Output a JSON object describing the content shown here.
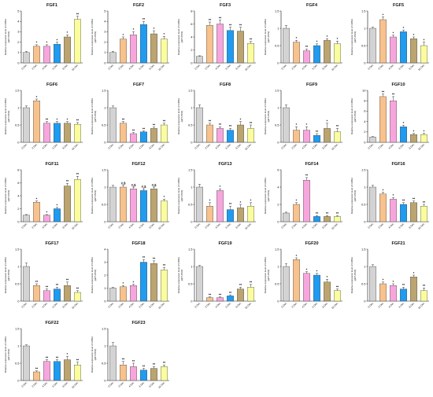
{
  "colors": [
    "#d3d3d3",
    "#f7c28d",
    "#f6a6dd",
    "#1f9bf0",
    "#bba46f",
    "#fafc9e"
  ],
  "chart_data": [
    {
      "type": "bar",
      "title": "FGF1",
      "ylabel": "Relative expression level of mRNA",
      "ylabel2": "(qRT-PCR)",
      "categories": [
        "0 Dec",
        "2 Dec",
        "4 Dec",
        "6 Dec",
        "8 Dec",
        "16 Dec"
      ],
      "values": [
        1.0,
        1.6,
        1.6,
        1.8,
        2.5,
        4.2
      ],
      "errors": [
        0.1,
        0.15,
        0.15,
        0.2,
        0.2,
        0.3
      ],
      "sig": [
        "",
        "*",
        "*",
        "*",
        "*",
        "**"
      ],
      "ylim": [
        0,
        5
      ],
      "yticks": [
        0,
        1,
        2,
        3,
        4,
        5
      ]
    },
    {
      "type": "bar",
      "title": "FGF2",
      "ylabel": "Relative expression level of mRNA",
      "ylabel2": "(qRT-PCR)",
      "categories": [
        "0 Dec",
        "2 Dec",
        "4 Dec",
        "6 Dec",
        "8 Dec",
        "16 Dec"
      ],
      "values": [
        1.0,
        2.3,
        2.7,
        3.7,
        2.8,
        2.3
      ],
      "errors": [
        0.1,
        0.2,
        0.3,
        0.3,
        0.3,
        0.25
      ],
      "sig": [
        "",
        "*",
        "*",
        "**",
        "*",
        "*"
      ],
      "ylim": [
        0,
        5
      ],
      "yticks": [
        0,
        1,
        2,
        3,
        4,
        5
      ]
    },
    {
      "type": "bar",
      "title": "FGF3",
      "ylabel": "Relative expression level of mRNA",
      "ylabel2": "(qRT-PCR)",
      "categories": [
        "0 Dec",
        "2 Dec",
        "4 Dec",
        "6 Dec",
        "8 Dec",
        "16 Dec"
      ],
      "values": [
        1.0,
        5.8,
        6.0,
        5.0,
        4.9,
        3.0
      ],
      "errors": [
        0.1,
        0.5,
        0.6,
        0.5,
        0.6,
        0.3
      ],
      "sig": [
        "",
        "**",
        "**",
        "**",
        "**",
        "**"
      ],
      "ylim": [
        0,
        8
      ],
      "yticks": [
        0,
        2,
        4,
        6,
        8
      ]
    },
    {
      "type": "bar",
      "title": "FGF4",
      "ylabel": "Relative expression level of mRNA",
      "ylabel2": "(qRT-PCR)",
      "categories": [
        "0 Dec",
        "2 Dec",
        "4 Dec",
        "6 Dec",
        "8 Dec",
        "16 Dec"
      ],
      "values": [
        1.0,
        0.6,
        0.35,
        0.5,
        0.65,
        0.55
      ],
      "errors": [
        0.08,
        0.05,
        0.05,
        0.05,
        0.05,
        0.08
      ],
      "sig": [
        "",
        "*",
        "**",
        "*",
        "*",
        "*"
      ],
      "ylim": [
        0,
        1.5
      ],
      "yticks": [
        0,
        0.5,
        1.0,
        1.5
      ]
    },
    {
      "type": "bar",
      "title": "FGF5",
      "ylabel": "Relative expression level of mRNA",
      "ylabel2": "(qRT-PCR)",
      "categories": [
        "0 Dec",
        "2 Dec",
        "4 Dec",
        "6 Dec",
        "8 Dec",
        "16 Dec"
      ],
      "values": [
        1.0,
        1.25,
        0.75,
        0.9,
        0.7,
        0.5
      ],
      "errors": [
        0.03,
        0.08,
        0.05,
        0.05,
        0.05,
        0.1
      ],
      "sig": [
        "",
        "*",
        "*",
        "*",
        "*",
        "*"
      ],
      "ylim": [
        0,
        1.5
      ],
      "yticks": [
        0,
        0.5,
        1.0,
        1.5
      ]
    },
    {
      "type": "bar",
      "title": "FGF6",
      "ylabel": "Relative expression level of mRNA",
      "ylabel2": "(qRT-PCR)",
      "categories": [
        "0 Dec",
        "2 Dec",
        "4 Dec",
        "6 Dec",
        "8 Dec",
        "16 Dec"
      ],
      "values": [
        1.0,
        1.2,
        0.55,
        0.55,
        0.55,
        0.52
      ],
      "errors": [
        0.05,
        0.05,
        0.05,
        0.05,
        0.05,
        0.05
      ],
      "sig": [
        "",
        "*",
        "**",
        "*",
        "*",
        "**"
      ],
      "ylim": [
        0,
        1.5
      ],
      "yticks": [
        0,
        0.5,
        1.0,
        1.5
      ]
    },
    {
      "type": "bar",
      "title": "FGF7",
      "ylabel": "Relative expression level of mRNA",
      "ylabel2": "(qRT-PCR)",
      "categories": [
        "0 Dec",
        "2 Dec",
        "4 Dec",
        "6 Dec",
        "8 Dec",
        "16 Dec"
      ],
      "values": [
        1.0,
        0.55,
        0.25,
        0.3,
        0.4,
        0.5
      ],
      "errors": [
        0.05,
        0.05,
        0.03,
        0.03,
        0.04,
        0.05
      ],
      "sig": [
        "",
        "**",
        "**",
        "**",
        "**",
        "**"
      ],
      "ylim": [
        0,
        1.5
      ],
      "yticks": [
        0,
        0.5,
        1.0,
        1.5
      ]
    },
    {
      "type": "bar",
      "title": "FGF8",
      "ylabel": "Relative expression level of mRNA",
      "ylabel2": "(qRT-PCR)",
      "categories": [
        "0 Dec",
        "2 Dec",
        "4 Dec",
        "6 Dec",
        "8 Dec",
        "16 Dec"
      ],
      "values": [
        1.0,
        0.5,
        0.4,
        0.35,
        0.5,
        0.4
      ],
      "errors": [
        0.08,
        0.05,
        0.05,
        0.05,
        0.1,
        0.1
      ],
      "sig": [
        "",
        "**",
        "**",
        "**",
        "*",
        "**"
      ],
      "ylim": [
        0,
        1.5
      ],
      "yticks": [
        0,
        0.5,
        1.0,
        1.5
      ]
    },
    {
      "type": "bar",
      "title": "FGF9",
      "ylabel": "Relative expression level of mRNA",
      "ylabel2": "(qRT-PCR)",
      "categories": [
        "0 Dec",
        "2 Dec",
        "4 Dec",
        "6 Dec",
        "8 Dec",
        "16 Dec"
      ],
      "values": [
        1.0,
        0.35,
        0.35,
        0.2,
        0.4,
        0.3
      ],
      "errors": [
        0.08,
        0.1,
        0.1,
        0.05,
        0.15,
        0.1
      ],
      "sig": [
        "",
        "*",
        "*",
        "**",
        "*",
        "**"
      ],
      "ylim": [
        0,
        1.5
      ],
      "yticks": [
        0,
        0.5,
        1.0,
        1.5
      ]
    },
    {
      "type": "bar",
      "title": "FGF10",
      "ylabel": "Relative expression level of mRNA",
      "ylabel2": "(qRT-PCR)",
      "categories": [
        "0 Dec",
        "2 Dec",
        "4 Dec",
        "6 Dec",
        "8 Dec",
        "16 Dec"
      ],
      "values": [
        1.0,
        8.8,
        8.0,
        3.0,
        1.5,
        1.5
      ],
      "errors": [
        0.1,
        0.5,
        0.8,
        0.3,
        0.2,
        0.2
      ],
      "sig": [
        "",
        "**",
        "**",
        "*",
        "*",
        "*"
      ],
      "ylim": [
        0,
        10
      ],
      "yticks": [
        0,
        2,
        4,
        6,
        8,
        10
      ]
    },
    {
      "type": "bar",
      "title": "FGF11",
      "ylabel": "Relative expression level of mRNA",
      "ylabel2": "(qRT-PCR)",
      "categories": [
        "0 Dec",
        "2 Dec",
        "4 Dec",
        "6 Dec",
        "8 Dec",
        "16 Dec"
      ],
      "values": [
        1.0,
        3.0,
        1.0,
        2.0,
        5.5,
        6.5
      ],
      "errors": [
        0.1,
        0.2,
        0.1,
        0.2,
        0.4,
        0.5
      ],
      "sig": [
        "",
        "*",
        "*",
        "*",
        "**",
        "**"
      ],
      "ylim": [
        0,
        8
      ],
      "yticks": [
        0,
        2,
        4,
        6,
        8
      ]
    },
    {
      "type": "bar",
      "title": "FGF12",
      "ylabel": "Relative expression level of mRNA",
      "ylabel2": "(qRT-PCR)",
      "categories": [
        "0 Dec",
        "2 Dec",
        "4 Dec",
        "6 Dec",
        "8 Dec",
        "16 Dec"
      ],
      "values": [
        1.0,
        1.0,
        0.95,
        0.9,
        0.95,
        0.6
      ],
      "errors": [
        0.05,
        0.05,
        0.05,
        0.05,
        0.05,
        0.05
      ],
      "sig": [
        "",
        "#,$",
        "#,$",
        "#,$",
        "#,$",
        "*"
      ],
      "ylim": [
        0,
        1.5
      ],
      "yticks": [
        0,
        0.5,
        1.0,
        1.5
      ]
    },
    {
      "type": "bar",
      "title": "FGF13",
      "ylabel": "Relative expression level of mRNA",
      "ylabel2": "(qRT-PCR)",
      "categories": [
        "0 Dec",
        "2 Dec",
        "4 Dec",
        "6 Dec",
        "8 Dec",
        "16 Dec"
      ],
      "values": [
        1.0,
        0.45,
        0.9,
        0.35,
        0.4,
        0.45
      ],
      "errors": [
        0.08,
        0.1,
        0.05,
        0.1,
        0.1,
        0.1
      ],
      "sig": [
        "",
        "*",
        "*",
        "**",
        "*",
        "*"
      ],
      "ylim": [
        0,
        1.5
      ],
      "yticks": [
        0,
        0.5,
        1.0,
        1.5
      ]
    },
    {
      "type": "bar",
      "title": "FGF14",
      "ylabel": "Relative expression level of mRNA",
      "ylabel2": "(qRT-PCR)",
      "categories": [
        "0 Dec",
        "2 Dec",
        "4 Dec",
        "6 Dec",
        "8 Dec",
        "16 Dec"
      ],
      "values": [
        1.0,
        2.0,
        4.8,
        0.6,
        0.6,
        0.6
      ],
      "errors": [
        0.1,
        0.2,
        0.3,
        0.1,
        0.1,
        0.1
      ],
      "sig": [
        "",
        "*",
        "**",
        "**",
        "**",
        "**"
      ],
      "ylim": [
        0,
        6
      ],
      "yticks": [
        0,
        2,
        4,
        6
      ]
    },
    {
      "type": "bar",
      "title": "FGF16",
      "ylabel": "Relative expression level of mRNA",
      "ylabel2": "(qRT-PCR)",
      "categories": [
        "0 Dec",
        "2 Dec",
        "4 Dec",
        "6 Dec",
        "8 Dec",
        "16 Dec"
      ],
      "values": [
        1.0,
        0.8,
        0.65,
        0.5,
        0.55,
        0.45
      ],
      "errors": [
        0.05,
        0.05,
        0.05,
        0.05,
        0.05,
        0.05
      ],
      "sig": [
        "",
        "*",
        "*",
        "**",
        "**",
        "**"
      ],
      "ylim": [
        0,
        1.5
      ],
      "yticks": [
        0,
        0.5,
        1.0,
        1.5
      ]
    },
    {
      "type": "bar",
      "title": "FGF17",
      "ylabel": "Relative expression level of mRNA",
      "ylabel2": "(qRT-PCR)",
      "categories": [
        "0 Dec",
        "2 Dec",
        "4 Dec",
        "6 Dec",
        "8 Dec",
        "16 Dec"
      ],
      "values": [
        1.0,
        0.45,
        0.3,
        0.35,
        0.45,
        0.25
      ],
      "errors": [
        0.1,
        0.05,
        0.05,
        0.05,
        0.1,
        0.05
      ],
      "sig": [
        "",
        "**",
        "**",
        "**",
        "**",
        "**"
      ],
      "ylim": [
        0,
        1.5
      ],
      "yticks": [
        0,
        0.5,
        1.0,
        1.5
      ]
    },
    {
      "type": "bar",
      "title": "FGF18",
      "ylabel": "Relative expression level of mRNA",
      "ylabel2": "(qRT-PCR)",
      "categories": [
        "0 Dec",
        "2 Dec",
        "4 Dec",
        "6 Dec",
        "8 Dec",
        "16 Dec"
      ],
      "values": [
        1.0,
        1.1,
        1.2,
        3.0,
        2.9,
        2.4
      ],
      "errors": [
        0.05,
        0.1,
        0.1,
        0.2,
        0.2,
        0.2
      ],
      "sig": [
        "",
        "*",
        "*",
        "**",
        "**",
        "**"
      ],
      "ylim": [
        0,
        4
      ],
      "yticks": [
        0,
        1,
        2,
        3,
        4
      ]
    },
    {
      "type": "bar",
      "title": "FGF19",
      "ylabel": "Relative expression level of mRNA",
      "ylabel2": "(qRT-PCR)",
      "categories": [
        "0 Dec",
        "2 Dec",
        "4 Dec",
        "6 Dec",
        "8 Dec",
        "16 Dec"
      ],
      "values": [
        1.0,
        0.1,
        0.1,
        0.15,
        0.35,
        0.4
      ],
      "errors": [
        0.03,
        0.02,
        0.02,
        0.03,
        0.05,
        0.08
      ],
      "sig": [
        "",
        "**",
        "**",
        "**",
        "**",
        "**"
      ],
      "ylim": [
        0,
        1.5
      ],
      "yticks": [
        0,
        0.5,
        1.0,
        1.5
      ]
    },
    {
      "type": "bar",
      "title": "FGF20",
      "ylabel": "Relative expression level of mRNA",
      "ylabel2": "(qRT-PCR)",
      "categories": [
        "0 Dec",
        "2 Dec",
        "4 Dec",
        "6 Dec",
        "8 Dec",
        "16 Dec"
      ],
      "values": [
        1.0,
        1.2,
        0.8,
        0.75,
        0.55,
        0.3
      ],
      "errors": [
        0.08,
        0.05,
        0.05,
        0.05,
        0.08,
        0.05
      ],
      "sig": [
        "",
        "*",
        "*",
        "*",
        "*",
        "**"
      ],
      "ylim": [
        0,
        1.5
      ],
      "yticks": [
        0,
        0.5,
        1.0,
        1.5
      ]
    },
    {
      "type": "bar",
      "title": "FGF21",
      "ylabel": "Relative expression level of mRNA",
      "ylabel2": "(qRT-PCR)",
      "categories": [
        "0 Dec",
        "2 Dec",
        "4 Dec",
        "6 Dec",
        "8 Dec",
        "16 Dec"
      ],
      "values": [
        1.0,
        0.5,
        0.45,
        0.35,
        0.7,
        0.3
      ],
      "errors": [
        0.05,
        0.05,
        0.05,
        0.05,
        0.05,
        0.08
      ],
      "sig": [
        "",
        "*",
        "*",
        "**",
        "*",
        "**"
      ],
      "ylim": [
        0,
        1.5
      ],
      "yticks": [
        0,
        0.5,
        1.0,
        1.5
      ]
    },
    {
      "type": "bar",
      "title": "FGF22",
      "ylabel": "Relative expression level of mRNA",
      "ylabel2": "(qRT-PCR)",
      "categories": [
        "0 Dec",
        "2 Dec",
        "4 Dec",
        "6 Dec",
        "8 Dec",
        "16 Dec"
      ],
      "values": [
        1.0,
        0.25,
        0.55,
        0.55,
        0.6,
        0.45
      ],
      "errors": [
        0.03,
        0.03,
        0.05,
        0.05,
        0.1,
        0.08
      ],
      "sig": [
        "",
        "**",
        "**",
        "**",
        "*",
        "**"
      ],
      "ylim": [
        0,
        1.5
      ],
      "yticks": [
        0,
        0.5,
        1.0,
        1.5
      ]
    },
    {
      "type": "bar",
      "title": "FGF23",
      "ylabel": "Relative expression level of mRNA",
      "ylabel2": "(qRT-PCR)",
      "categories": [
        "0 Dec",
        "2 Dec",
        "4 Dec",
        "6 Dec",
        "8 Dec",
        "16 Dec"
      ],
      "values": [
        1.0,
        0.45,
        0.4,
        0.3,
        0.35,
        0.4
      ],
      "errors": [
        0.1,
        0.1,
        0.1,
        0.05,
        0.05,
        0.05
      ],
      "sig": [
        "",
        "**",
        "**",
        "**",
        "**",
        "**"
      ],
      "ylim": [
        0,
        1.5
      ],
      "yticks": [
        0,
        0.5,
        1.0,
        1.5
      ]
    }
  ]
}
